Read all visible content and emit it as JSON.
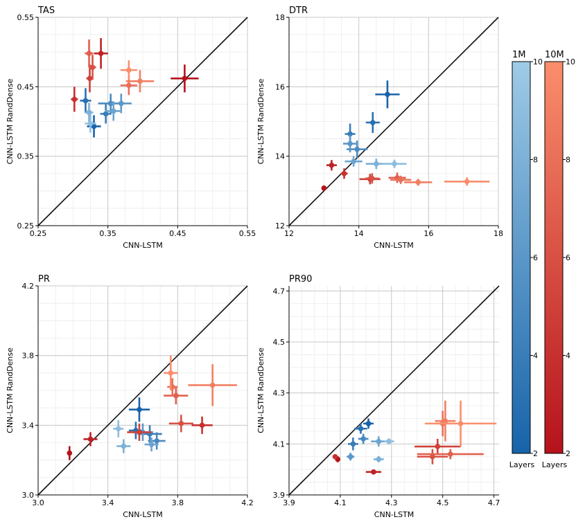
{
  "chart_data": [
    {
      "type": "scatter",
      "title": "TAS",
      "xlabel": "CNN-LSTM",
      "ylabel": "CNN-LSTM RandDense",
      "xlim": [
        0.25,
        0.55
      ],
      "ylim": [
        0.25,
        0.55
      ],
      "xticks": [
        0.25,
        0.35,
        0.45,
        0.55
      ],
      "yticks": [
        0.25,
        0.35,
        0.45,
        0.55
      ],
      "xtick_labels": [
        "0.25",
        "0.35",
        "0.45",
        "0.55"
      ],
      "ytick_labels": [
        "0.25",
        "0.35",
        "0.45",
        "0.55"
      ],
      "minor_step": 0.025,
      "series": [
        {
          "name": "1M",
          "points": [
            {
              "x": 0.33,
              "y": 0.393,
              "xerr": 0.01,
              "yerr": 0.016,
              "layers": 2
            },
            {
              "x": 0.318,
              "y": 0.43,
              "xerr": 0.008,
              "yerr": 0.018,
              "layers": 3
            },
            {
              "x": 0.347,
              "y": 0.411,
              "xerr": 0.008,
              "yerr": 0.014,
              "layers": 4
            },
            {
              "x": 0.354,
              "y": 0.426,
              "xerr": 0.018,
              "yerr": 0.014,
              "layers": 5
            },
            {
              "x": 0.369,
              "y": 0.426,
              "xerr": 0.015,
              "yerr": 0.014,
              "layers": 6
            },
            {
              "x": 0.358,
              "y": 0.415,
              "xerr": 0.012,
              "yerr": 0.014,
              "layers": 7
            },
            {
              "x": 0.323,
              "y": 0.413,
              "xerr": 0.006,
              "yerr": 0.014,
              "layers": 8
            },
            {
              "x": 0.325,
              "y": 0.397,
              "xerr": 0.008,
              "yerr": 0.013,
              "layers": 9
            }
          ]
        },
        {
          "name": "10M",
          "points": [
            {
              "x": 0.46,
              "y": 0.462,
              "xerr": 0.02,
              "yerr": 0.02,
              "layers": 2
            },
            {
              "x": 0.34,
              "y": 0.498,
              "xerr": 0.01,
              "yerr": 0.022,
              "layers": 3
            },
            {
              "x": 0.302,
              "y": 0.432,
              "xerr": 0.005,
              "yerr": 0.018,
              "layers": 4
            },
            {
              "x": 0.324,
              "y": 0.462,
              "xerr": 0.005,
              "yerr": 0.02,
              "layers": 5
            },
            {
              "x": 0.328,
              "y": 0.478,
              "xerr": 0.005,
              "yerr": 0.018,
              "layers": 6
            },
            {
              "x": 0.323,
              "y": 0.498,
              "xerr": 0.006,
              "yerr": 0.02,
              "layers": 7
            },
            {
              "x": 0.38,
              "y": 0.452,
              "xerr": 0.012,
              "yerr": 0.014,
              "layers": 8
            },
            {
              "x": 0.396,
              "y": 0.458,
              "xerr": 0.02,
              "yerr": 0.016,
              "layers": 9
            },
            {
              "x": 0.38,
              "y": 0.474,
              "xerr": 0.012,
              "yerr": 0.014,
              "layers": 10
            }
          ]
        }
      ]
    },
    {
      "type": "scatter",
      "title": "DTR",
      "xlabel": "CNN-LSTM",
      "ylabel": "CNN-LSTM RandDense",
      "xlim": [
        12,
        18
      ],
      "ylim": [
        12,
        18
      ],
      "xticks": [
        12,
        14,
        16,
        18
      ],
      "yticks": [
        12,
        14,
        16,
        18
      ],
      "xtick_labels": [
        "12",
        "14",
        "16",
        "18"
      ],
      "ytick_labels": [
        "12",
        "14",
        "16",
        "18"
      ],
      "minor_step": 0.5,
      "series": [
        {
          "name": "1M",
          "points": [
            {
              "x": 14.82,
              "y": 15.78,
              "xerr": 0.35,
              "yerr": 0.4,
              "layers": 2
            },
            {
              "x": 14.4,
              "y": 14.97,
              "xerr": 0.2,
              "yerr": 0.3,
              "layers": 3
            },
            {
              "x": 13.75,
              "y": 14.64,
              "xerr": 0.15,
              "yerr": 0.3,
              "layers": 4
            },
            {
              "x": 13.95,
              "y": 14.2,
              "xerr": 0.3,
              "yerr": 0.25,
              "layers": 5
            },
            {
              "x": 13.75,
              "y": 14.36,
              "xerr": 0.2,
              "yerr": 0.25,
              "layers": 6
            },
            {
              "x": 13.85,
              "y": 13.85,
              "xerr": 0.25,
              "yerr": 0.15,
              "layers": 7
            },
            {
              "x": 14.5,
              "y": 13.78,
              "xerr": 0.3,
              "yerr": 0.15,
              "layers": 8
            },
            {
              "x": 15.02,
              "y": 13.78,
              "xerr": 0.35,
              "yerr": 0.12,
              "layers": 9
            }
          ]
        },
        {
          "name": "10M",
          "points": [
            {
              "x": 13.0,
              "y": 13.08,
              "xerr": 0.05,
              "yerr": 0.08,
              "layers": 2
            },
            {
              "x": 13.22,
              "y": 13.74,
              "xerr": 0.15,
              "yerr": 0.15,
              "layers": 3
            },
            {
              "x": 13.58,
              "y": 13.5,
              "xerr": 0.1,
              "yerr": 0.15,
              "layers": 4
            },
            {
              "x": 14.32,
              "y": 13.34,
              "xerr": 0.3,
              "yerr": 0.15,
              "layers": 5
            },
            {
              "x": 14.38,
              "y": 13.36,
              "xerr": 0.2,
              "yerr": 0.15,
              "layers": 6
            },
            {
              "x": 15.1,
              "y": 13.38,
              "xerr": 0.25,
              "yerr": 0.15,
              "layers": 7
            },
            {
              "x": 15.2,
              "y": 13.32,
              "xerr": 0.3,
              "yerr": 0.12,
              "layers": 8
            },
            {
              "x": 15.7,
              "y": 13.25,
              "xerr": 0.4,
              "yerr": 0.1,
              "layers": 9
            },
            {
              "x": 17.1,
              "y": 13.27,
              "xerr": 0.65,
              "yerr": 0.12,
              "layers": 10
            }
          ]
        }
      ]
    },
    {
      "type": "scatter",
      "title": "PR",
      "xlabel": "CNN-LSTM",
      "ylabel": "CNN-LSTM RandDense",
      "xlim": [
        3.0,
        4.2
      ],
      "ylim": [
        3.0,
        4.2
      ],
      "xticks": [
        3.0,
        3.4,
        3.8,
        4.2
      ],
      "yticks": [
        3.0,
        3.4,
        3.8,
        4.2
      ],
      "xtick_labels": [
        "3.0",
        "3.4",
        "3.8",
        "4.2"
      ],
      "ytick_labels": [
        "3.0",
        "3.4",
        "3.8",
        "4.2"
      ],
      "minor_step": 0.1,
      "series": [
        {
          "name": "1M",
          "points": [
            {
              "x": 3.58,
              "y": 3.49,
              "xerr": 0.06,
              "yerr": 0.07,
              "layers": 2
            },
            {
              "x": 3.56,
              "y": 3.37,
              "xerr": 0.04,
              "yerr": 0.05,
              "layers": 3
            },
            {
              "x": 3.64,
              "y": 3.35,
              "xerr": 0.07,
              "yerr": 0.05,
              "layers": 4
            },
            {
              "x": 3.68,
              "y": 3.31,
              "xerr": 0.05,
              "yerr": 0.05,
              "layers": 5
            },
            {
              "x": 3.6,
              "y": 3.36,
              "xerr": 0.06,
              "yerr": 0.05,
              "layers": 6
            },
            {
              "x": 3.65,
              "y": 3.29,
              "xerr": 0.04,
              "yerr": 0.04,
              "layers": 7
            },
            {
              "x": 3.49,
              "y": 3.28,
              "xerr": 0.04,
              "yerr": 0.04,
              "layers": 8
            },
            {
              "x": 3.46,
              "y": 3.38,
              "xerr": 0.03,
              "yerr": 0.05,
              "layers": 9
            }
          ]
        },
        {
          "name": "10M",
          "points": [
            {
              "x": 3.18,
              "y": 3.24,
              "xerr": 0.005,
              "yerr": 0.04,
              "layers": 2
            },
            {
              "x": 3.3,
              "y": 3.32,
              "xerr": 0.04,
              "yerr": 0.04,
              "layers": 3
            },
            {
              "x": 3.94,
              "y": 3.4,
              "xerr": 0.06,
              "yerr": 0.05,
              "layers": 4
            },
            {
              "x": 3.58,
              "y": 3.36,
              "xerr": 0.07,
              "yerr": 0.05,
              "layers": 5
            },
            {
              "x": 3.82,
              "y": 3.41,
              "xerr": 0.07,
              "yerr": 0.05,
              "layers": 6
            },
            {
              "x": 3.79,
              "y": 3.57,
              "xerr": 0.07,
              "yerr": 0.05,
              "layers": 7
            },
            {
              "x": 3.77,
              "y": 3.62,
              "xerr": 0.03,
              "yerr": 0.05,
              "layers": 8
            },
            {
              "x": 4.0,
              "y": 3.63,
              "xerr": 0.14,
              "yerr": 0.12,
              "layers": 9
            },
            {
              "x": 3.76,
              "y": 3.7,
              "xerr": 0.04,
              "yerr": 0.1,
              "layers": 10
            }
          ]
        }
      ]
    },
    {
      "type": "scatter",
      "title": "PR90",
      "xlabel": "CNN-LSTM",
      "ylabel": "CNN-LSTM RandDense",
      "xlim": [
        3.9,
        4.72
      ],
      "ylim": [
        3.9,
        4.72
      ],
      "xticks": [
        3.9,
        4.1,
        4.3,
        4.5,
        4.7
      ],
      "yticks": [
        3.9,
        4.1,
        4.3,
        4.5,
        4.7
      ],
      "xtick_labels": [
        "3.9",
        "4.1",
        "4.3",
        "4.5",
        "4.7"
      ],
      "ytick_labels": [
        "3.9",
        "4.1",
        "4.3",
        "4.5",
        "4.7"
      ],
      "minor_step": 0.05,
      "series": [
        {
          "name": "1M",
          "points": [
            {
              "x": 4.21,
              "y": 4.18,
              "xerr": 0.02,
              "yerr": 0.02,
              "layers": 2
            },
            {
              "x": 4.18,
              "y": 4.16,
              "xerr": 0.025,
              "yerr": 0.02,
              "layers": 3
            },
            {
              "x": 4.15,
              "y": 4.1,
              "xerr": 0.02,
              "yerr": 0.025,
              "layers": 4
            },
            {
              "x": 4.19,
              "y": 4.12,
              "xerr": 0.02,
              "yerr": 0.02,
              "layers": 5
            },
            {
              "x": 4.14,
              "y": 4.05,
              "xerr": 0.015,
              "yerr": 0.015,
              "layers": 6
            },
            {
              "x": 4.25,
              "y": 4.11,
              "xerr": 0.03,
              "yerr": 0.02,
              "layers": 7
            },
            {
              "x": 4.25,
              "y": 4.04,
              "xerr": 0.02,
              "yerr": 0.012,
              "layers": 8
            },
            {
              "x": 4.29,
              "y": 4.11,
              "xerr": 0.02,
              "yerr": 0.012,
              "layers": 9
            }
          ]
        },
        {
          "name": "10M",
          "points": [
            {
              "x": 4.09,
              "y": 4.04,
              "xerr": 0.01,
              "yerr": 0.012,
              "layers": 2
            },
            {
              "x": 4.23,
              "y": 3.99,
              "xerr": 0.03,
              "yerr": 0.005,
              "layers": 3
            },
            {
              "x": 4.08,
              "y": 4.05,
              "xerr": 0.01,
              "yerr": 0.01,
              "layers": 4
            },
            {
              "x": 4.48,
              "y": 4.09,
              "xerr": 0.09,
              "yerr": 0.03,
              "layers": 5
            },
            {
              "x": 4.46,
              "y": 4.05,
              "xerr": 0.06,
              "yerr": 0.03,
              "layers": 6
            },
            {
              "x": 4.53,
              "y": 4.06,
              "xerr": 0.13,
              "yerr": 0.02,
              "layers": 7
            },
            {
              "x": 4.5,
              "y": 4.18,
              "xerr": 0.03,
              "yerr": 0.05,
              "layers": 8
            },
            {
              "x": 4.51,
              "y": 4.19,
              "xerr": 0.04,
              "yerr": 0.08,
              "layers": 9
            },
            {
              "x": 4.57,
              "y": 4.18,
              "xerr": 0.14,
              "yerr": 0.09,
              "layers": 10
            }
          ]
        }
      ]
    }
  ],
  "colorbars": [
    {
      "name": "1M",
      "label": "1M",
      "cmap_low": "#1763aa",
      "cmap_high": "#9fcbe6",
      "ticks": [
        "2",
        "4",
        "6",
        "8",
        "10"
      ],
      "range": [
        2,
        10
      ],
      "caption": "Layers"
    },
    {
      "name": "10M",
      "label": "10M",
      "cmap_low": "#b5121b",
      "cmap_high": "#fb8e6c",
      "ticks": [
        "2",
        "4",
        "6",
        "8",
        "10"
      ],
      "range": [
        2,
        10
      ],
      "caption": "Layers"
    }
  ]
}
